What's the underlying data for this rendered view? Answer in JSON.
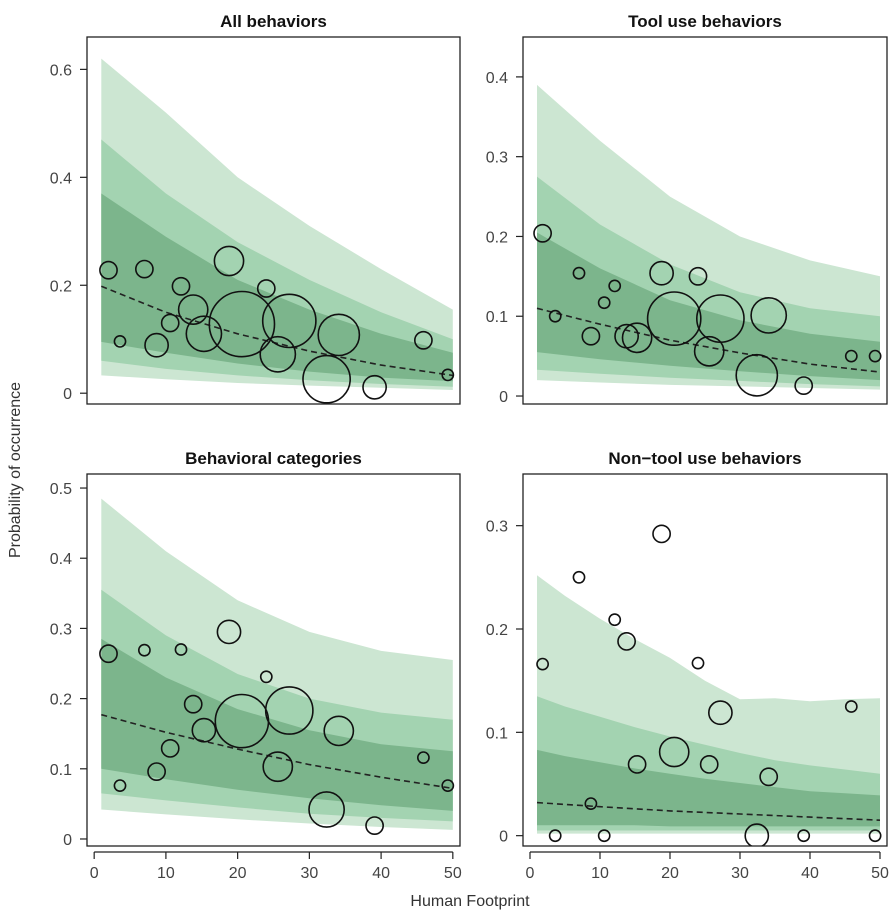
{
  "figure": {
    "ylabel": "Probability of occurrence",
    "xlabel": "Human Footprint"
  },
  "colors": {
    "band_outer": "#cce6d2",
    "band_mid": "#a3d3b1",
    "band_inner": "#7cb58c",
    "band_core": "#7cb58c",
    "band_bottom": "#a3d3b1",
    "axis": "#222222",
    "tick_label": "#444444",
    "points": "#111111"
  },
  "chart_data": [
    {
      "type": "scatter",
      "title": "All behaviors",
      "xlim": [
        -1,
        51
      ],
      "ylim": [
        -0.02,
        0.66
      ],
      "yticks": [
        0,
        0.2,
        0.4,
        0.6
      ],
      "yticklabels": [
        "0",
        "0.2",
        "0.4",
        "0.6"
      ],
      "xticks": [],
      "xticklabels": [],
      "bands": {
        "x": [
          1,
          10,
          20,
          30,
          40,
          50
        ],
        "outer": {
          "lo": [
            0.033,
            0.026,
            0.019,
            0.014,
            0.01,
            0.006
          ],
          "hi": [
            0.62,
            0.52,
            0.4,
            0.31,
            0.23,
            0.155
          ]
        },
        "mid": {
          "lo": [
            0.06,
            0.045,
            0.033,
            0.024,
            0.017,
            0.012
          ],
          "hi": [
            0.47,
            0.37,
            0.28,
            0.21,
            0.15,
            0.1
          ]
        },
        "inner": {
          "lo": [
            0.095,
            0.075,
            0.055,
            0.04,
            0.029,
            0.022
          ],
          "hi": [
            0.37,
            0.29,
            0.21,
            0.155,
            0.11,
            0.075
          ]
        }
      },
      "fit": {
        "x": [
          1,
          10,
          20,
          30,
          40,
          50
        ],
        "y": [
          0.198,
          0.15,
          0.11,
          0.078,
          0.052,
          0.033
        ]
      },
      "points": [
        {
          "x": 2,
          "y": 0.228,
          "s": 2
        },
        {
          "x": 3.6,
          "y": 0.096,
          "s": 1
        },
        {
          "x": 7,
          "y": 0.23,
          "s": 2
        },
        {
          "x": 8.7,
          "y": 0.089,
          "s": 3
        },
        {
          "x": 10.6,
          "y": 0.13,
          "s": 2
        },
        {
          "x": 12.1,
          "y": 0.198,
          "s": 2
        },
        {
          "x": 13.8,
          "y": 0.155,
          "s": 4
        },
        {
          "x": 15.3,
          "y": 0.11,
          "s": 5
        },
        {
          "x": 18.8,
          "y": 0.245,
          "s": 4
        },
        {
          "x": 20.6,
          "y": 0.128,
          "s": 10
        },
        {
          "x": 24,
          "y": 0.194,
          "s": 2
        },
        {
          "x": 25.6,
          "y": 0.072,
          "s": 5
        },
        {
          "x": 27.2,
          "y": 0.134,
          "s": 8
        },
        {
          "x": 32.4,
          "y": 0.026,
          "s": 7
        },
        {
          "x": 34.1,
          "y": 0.108,
          "s": 6
        },
        {
          "x": 39.1,
          "y": 0.011,
          "s": 3
        },
        {
          "x": 45.9,
          "y": 0.098,
          "s": 2
        },
        {
          "x": 49.3,
          "y": 0.034,
          "s": 1
        }
      ]
    },
    {
      "type": "scatter",
      "title": "Tool use behaviors",
      "xlim": [
        -1,
        51
      ],
      "ylim": [
        -0.01,
        0.45
      ],
      "yticks": [
        0,
        0.1,
        0.2,
        0.3,
        0.4
      ],
      "yticklabels": [
        "0",
        "0.1",
        "0.2",
        "0.3",
        "0.4"
      ],
      "xticks": [],
      "xticklabels": [],
      "bands": {
        "x": [
          1,
          10,
          20,
          30,
          40,
          50
        ],
        "outer": {
          "lo": [
            0.02,
            0.017,
            0.014,
            0.012,
            0.01,
            0.008
          ],
          "hi": [
            0.39,
            0.32,
            0.25,
            0.2,
            0.17,
            0.15
          ]
        },
        "mid": {
          "lo": [
            0.033,
            0.028,
            0.023,
            0.019,
            0.015,
            0.012
          ],
          "hi": [
            0.275,
            0.215,
            0.165,
            0.13,
            0.11,
            0.1
          ]
        },
        "inner": {
          "lo": [
            0.055,
            0.046,
            0.038,
            0.031,
            0.025,
            0.02
          ],
          "hi": [
            0.205,
            0.16,
            0.12,
            0.095,
            0.078,
            0.068
          ]
        }
      },
      "fit": {
        "x": [
          1,
          10,
          20,
          30,
          40,
          50
        ],
        "y": [
          0.11,
          0.09,
          0.07,
          0.054,
          0.04,
          0.03
        ]
      },
      "points": [
        {
          "x": 1.8,
          "y": 0.204,
          "s": 2
        },
        {
          "x": 3.6,
          "y": 0.1,
          "s": 1
        },
        {
          "x": 7,
          "y": 0.154,
          "s": 1
        },
        {
          "x": 8.7,
          "y": 0.075,
          "s": 2
        },
        {
          "x": 10.6,
          "y": 0.117,
          "s": 1
        },
        {
          "x": 12.1,
          "y": 0.138,
          "s": 1
        },
        {
          "x": 13.8,
          "y": 0.075,
          "s": 3
        },
        {
          "x": 15.3,
          "y": 0.073,
          "s": 4
        },
        {
          "x": 18.8,
          "y": 0.154,
          "s": 3
        },
        {
          "x": 20.6,
          "y": 0.097,
          "s": 8
        },
        {
          "x": 24,
          "y": 0.15,
          "s": 2
        },
        {
          "x": 25.6,
          "y": 0.056,
          "s": 4
        },
        {
          "x": 27.2,
          "y": 0.097,
          "s": 7
        },
        {
          "x": 32.4,
          "y": 0.026,
          "s": 6
        },
        {
          "x": 34.1,
          "y": 0.101,
          "s": 5
        },
        {
          "x": 39.1,
          "y": 0.013,
          "s": 2
        },
        {
          "x": 45.9,
          "y": 0.05,
          "s": 1
        },
        {
          "x": 49.3,
          "y": 0.05,
          "s": 1
        }
      ]
    },
    {
      "type": "scatter",
      "title": "Behavioral categories",
      "xlim": [
        -1,
        51
      ],
      "ylim": [
        -0.01,
        0.52
      ],
      "yticks": [
        0,
        0.1,
        0.2,
        0.3,
        0.4,
        0.5
      ],
      "yticklabels": [
        "0",
        "0.1",
        "0.2",
        "0.3",
        "0.4",
        "0.5"
      ],
      "xticks": [
        0,
        10,
        20,
        30,
        40,
        50
      ],
      "xticklabels": [
        "0",
        "10",
        "20",
        "30",
        "40",
        "50"
      ],
      "bands": {
        "x": [
          1,
          10,
          20,
          30,
          40,
          50
        ],
        "outer": {
          "lo": [
            0.042,
            0.035,
            0.028,
            0.022,
            0.017,
            0.013
          ],
          "hi": [
            0.485,
            0.41,
            0.34,
            0.295,
            0.268,
            0.255
          ]
        },
        "mid": {
          "lo": [
            0.065,
            0.055,
            0.045,
            0.036,
            0.03,
            0.025
          ],
          "hi": [
            0.355,
            0.29,
            0.235,
            0.2,
            0.18,
            0.17
          ]
        },
        "inner": {
          "lo": [
            0.1,
            0.085,
            0.07,
            0.058,
            0.048,
            0.04
          ],
          "hi": [
            0.285,
            0.23,
            0.185,
            0.155,
            0.135,
            0.125
          ]
        }
      },
      "fit": {
        "x": [
          1,
          10,
          20,
          30,
          40,
          50
        ],
        "y": [
          0.177,
          0.152,
          0.128,
          0.106,
          0.088,
          0.072
        ]
      },
      "points": [
        {
          "x": 2,
          "y": 0.264,
          "s": 2
        },
        {
          "x": 3.6,
          "y": 0.076,
          "s": 1
        },
        {
          "x": 7,
          "y": 0.269,
          "s": 1
        },
        {
          "x": 8.7,
          "y": 0.096,
          "s": 2
        },
        {
          "x": 10.6,
          "y": 0.129,
          "s": 2
        },
        {
          "x": 12.1,
          "y": 0.27,
          "s": 1
        },
        {
          "x": 13.8,
          "y": 0.192,
          "s": 2
        },
        {
          "x": 15.3,
          "y": 0.155,
          "s": 3
        },
        {
          "x": 18.8,
          "y": 0.295,
          "s": 3
        },
        {
          "x": 20.6,
          "y": 0.168,
          "s": 8
        },
        {
          "x": 24,
          "y": 0.231,
          "s": 1
        },
        {
          "x": 25.6,
          "y": 0.103,
          "s": 4
        },
        {
          "x": 27.2,
          "y": 0.183,
          "s": 7
        },
        {
          "x": 32.4,
          "y": 0.042,
          "s": 5
        },
        {
          "x": 34.1,
          "y": 0.154,
          "s": 4
        },
        {
          "x": 39.1,
          "y": 0.019,
          "s": 2
        },
        {
          "x": 45.9,
          "y": 0.116,
          "s": 1
        },
        {
          "x": 49.3,
          "y": 0.076,
          "s": 1
        }
      ]
    },
    {
      "type": "scatter",
      "title": "Non−tool use behaviors",
      "xlim": [
        -1,
        51
      ],
      "ylim": [
        -0.01,
        0.35
      ],
      "yticks": [
        0,
        0.1,
        0.2,
        0.3
      ],
      "yticklabels": [
        "0",
        "0.1",
        "0.2",
        "0.3"
      ],
      "xticks": [
        0,
        10,
        20,
        30,
        40,
        50
      ],
      "xticklabels": [
        "0",
        "10",
        "20",
        "30",
        "40",
        "50"
      ],
      "bands": {
        "x": [
          1,
          5,
          10,
          15,
          20,
          25,
          30,
          35,
          40,
          45,
          50
        ],
        "outer": {
          "lo": [
            0.002,
            0.002,
            0.002,
            0.002,
            0.002,
            0.002,
            0.002,
            0.002,
            0.002,
            0.002,
            0.002
          ],
          "hi": [
            0.252,
            0.232,
            0.21,
            0.19,
            0.172,
            0.15,
            0.132,
            0.133,
            0.13,
            0.132,
            0.133
          ]
        },
        "mid": {
          "lo": [
            0.005,
            0.005,
            0.005,
            0.005,
            0.005,
            0.005,
            0.005,
            0.005,
            0.005,
            0.005,
            0.005
          ],
          "hi": [
            0.135,
            0.125,
            0.115,
            0.105,
            0.096,
            0.088,
            0.08,
            0.073,
            0.068,
            0.064,
            0.06
          ]
        },
        "inner": {
          "lo": [
            0.01,
            0.01,
            0.01,
            0.01,
            0.009,
            0.009,
            0.009,
            0.009,
            0.009,
            0.009,
            0.009
          ],
          "hi": [
            0.083,
            0.077,
            0.071,
            0.065,
            0.06,
            0.055,
            0.051,
            0.047,
            0.043,
            0.041,
            0.039
          ]
        }
      },
      "fit": {
        "x": [
          1,
          10,
          20,
          30,
          40,
          50
        ],
        "y": [
          0.032,
          0.028,
          0.024,
          0.021,
          0.018,
          0.015
        ]
      },
      "points": [
        {
          "x": 1.8,
          "y": 0.166,
          "s": 1
        },
        {
          "x": 3.6,
          "y": 0.0,
          "s": 1
        },
        {
          "x": 7,
          "y": 0.25,
          "s": 1
        },
        {
          "x": 8.7,
          "y": 0.031,
          "s": 1
        },
        {
          "x": 10.6,
          "y": 0.0,
          "s": 1
        },
        {
          "x": 12.1,
          "y": 0.209,
          "s": 1
        },
        {
          "x": 13.8,
          "y": 0.188,
          "s": 2
        },
        {
          "x": 15.3,
          "y": 0.069,
          "s": 2
        },
        {
          "x": 18.8,
          "y": 0.292,
          "s": 2
        },
        {
          "x": 20.6,
          "y": 0.081,
          "s": 4
        },
        {
          "x": 24,
          "y": 0.167,
          "s": 1
        },
        {
          "x": 25.6,
          "y": 0.069,
          "s": 2
        },
        {
          "x": 27.2,
          "y": 0.119,
          "s": 3
        },
        {
          "x": 32.4,
          "y": 0.0,
          "s": 3
        },
        {
          "x": 34.1,
          "y": 0.057,
          "s": 2
        },
        {
          "x": 39.1,
          "y": 0.0,
          "s": 1
        },
        {
          "x": 45.9,
          "y": 0.125,
          "s": 1
        },
        {
          "x": 49.3,
          "y": 0.0,
          "s": 1
        }
      ]
    }
  ]
}
